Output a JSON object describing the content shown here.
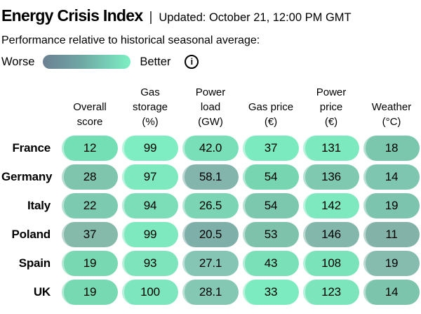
{
  "header": {
    "title": "Energy Crisis Index",
    "separator": "|",
    "updated": "Updated: October 21, 12:00 PM GMT"
  },
  "legend": {
    "subtitle": "Performance relative to historical seasonal average:",
    "worse": "Worse",
    "better": "Better",
    "info_icon": "i",
    "gradient_from": "#6B8093",
    "gradient_mid": "#6FA8A5",
    "gradient_to": "#7DF0C3"
  },
  "chart_data": {
    "type": "heatmap",
    "title": "Energy Crisis Index",
    "updated": "Updated: October 21, 12:00 PM GMT",
    "subtitle": "Performance relative to historical seasonal average:",
    "legend": {
      "worse": "Worse",
      "better": "Better"
    },
    "columns": [
      "Overall\nscore",
      "Gas\nstorage\n(%)",
      "Power\nload\n(GW)",
      "Gas price\n(€)",
      "Power\nprice\n(€)",
      "Weather\n(°C)"
    ],
    "column_units": [
      "score",
      "%",
      "GW",
      "€",
      "€",
      "°C"
    ],
    "rows": [
      {
        "country": "France",
        "cells": [
          {
            "value": "12",
            "color": "#74DFB4"
          },
          {
            "value": "99",
            "color": "#7FEDC2"
          },
          {
            "value": "42.0",
            "color": "#79DFB8"
          },
          {
            "value": "37",
            "color": "#7BEABE"
          },
          {
            "value": "131",
            "color": "#7DE9BE"
          },
          {
            "value": "18",
            "color": "#7BC7AE"
          }
        ]
      },
      {
        "country": "Germany",
        "cells": [
          {
            "value": "28",
            "color": "#7FC4AD"
          },
          {
            "value": "97",
            "color": "#7EE9BF"
          },
          {
            "value": "58.1",
            "color": "#84B5AD"
          },
          {
            "value": "54",
            "color": "#77D6B1"
          },
          {
            "value": "136",
            "color": "#7FC9B1"
          },
          {
            "value": "14",
            "color": "#7EC6AF"
          }
        ]
      },
      {
        "country": "Italy",
        "cells": [
          {
            "value": "22",
            "color": "#7CCBB0"
          },
          {
            "value": "94",
            "color": "#7CDDB9"
          },
          {
            "value": "26.5",
            "color": "#7BD4B4"
          },
          {
            "value": "54",
            "color": "#7CC8AF"
          },
          {
            "value": "142",
            "color": "#7EE9BF"
          },
          {
            "value": "19",
            "color": "#7CC4AD"
          }
        ]
      },
      {
        "country": "Poland",
        "cells": [
          {
            "value": "37",
            "color": "#85B9A9"
          },
          {
            "value": "99",
            "color": "#7EE8BE"
          },
          {
            "value": "20.5",
            "color": "#7FAFA9"
          },
          {
            "value": "53",
            "color": "#7FC2AC"
          },
          {
            "value": "146",
            "color": "#84B7AB"
          },
          {
            "value": "11",
            "color": "#83B3A8"
          }
        ]
      },
      {
        "country": "Spain",
        "cells": [
          {
            "value": "19",
            "color": "#78D8B2"
          },
          {
            "value": "93",
            "color": "#7EE4BC"
          },
          {
            "value": "27.1",
            "color": "#85C5B4"
          },
          {
            "value": "43",
            "color": "#79E0B8"
          },
          {
            "value": "108",
            "color": "#7BE3BA"
          },
          {
            "value": "19",
            "color": "#85BCAE"
          }
        ]
      },
      {
        "country": "UK",
        "cells": [
          {
            "value": "19",
            "color": "#76D9B2"
          },
          {
            "value": "100",
            "color": "#7EE6BE"
          },
          {
            "value": "28.1",
            "color": "#84C7B3"
          },
          {
            "value": "33",
            "color": "#7DEBC0"
          },
          {
            "value": "123",
            "color": "#7CE5BC"
          },
          {
            "value": "14",
            "color": "#7CC4AC"
          }
        ]
      }
    ]
  }
}
